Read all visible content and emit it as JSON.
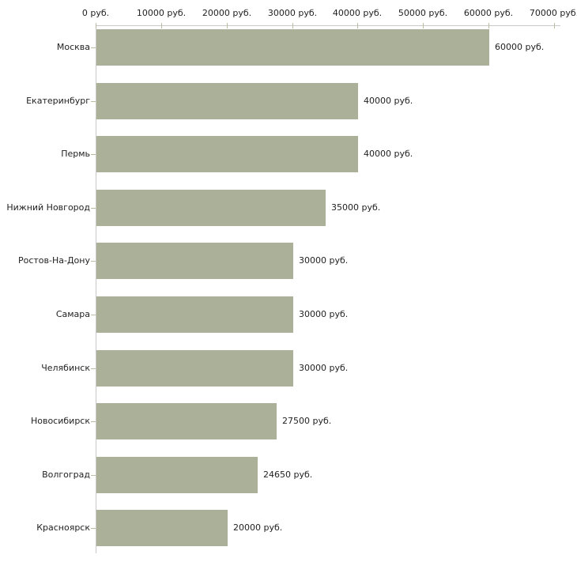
{
  "chart_data": {
    "type": "bar",
    "orientation": "horizontal",
    "title": "",
    "xlabel": "",
    "ylabel": "",
    "unit": "руб.",
    "categories": [
      "Москва",
      "Екатеринбург",
      "Пермь",
      "Нижний Новгород",
      "Ростов-На-Дону",
      "Самара",
      "Челябинск",
      "Новосибирск",
      "Волгоград",
      "Красноярск"
    ],
    "values": [
      60000,
      40000,
      40000,
      35000,
      30000,
      30000,
      30000,
      27500,
      24650,
      20000
    ],
    "value_labels": [
      "60000 руб.",
      "40000 руб.",
      "40000 руб.",
      "35000 руб.",
      "30000 руб.",
      "30000 руб.",
      "30000 руб.",
      "27500 руб.",
      "24650 руб.",
      "20000 руб."
    ],
    "x_tick_values": [
      0,
      10000,
      20000,
      30000,
      40000,
      50000,
      60000,
      70000
    ],
    "x_tick_labels": [
      "0 руб.",
      "10000 руб.",
      "20000 руб.",
      "30000 руб.",
      "40000 руб.",
      "50000 руб.",
      "60000 руб.",
      "70000 руб."
    ],
    "xlim": [
      0,
      70000
    ],
    "grid": "off",
    "legend": "none",
    "axis_position": "top",
    "bar_color": "#abb199",
    "axis_color": "#c9c9c9",
    "tick_color": "#b9bd9d",
    "text_color": "#222222",
    "background_color": "#ffffff"
  }
}
